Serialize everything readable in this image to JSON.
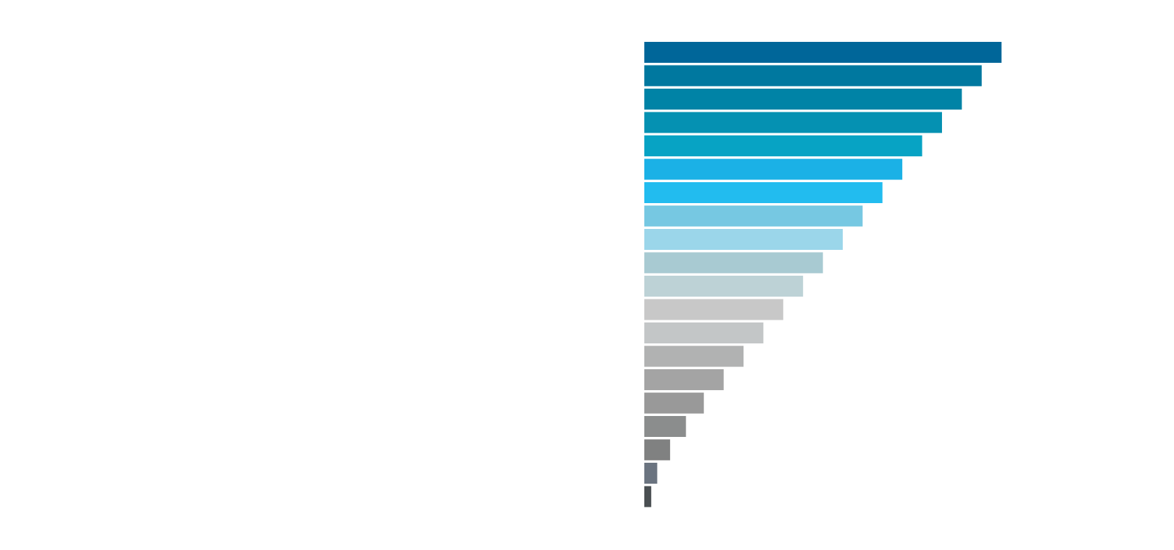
{
  "chart_data": {
    "type": "bar",
    "orientation": "horizontal",
    "title": "",
    "xlabel": "",
    "ylabel": "",
    "grid": false,
    "legend": "none",
    "xlim": [
      0,
      20
    ],
    "values": [
      18,
      17,
      16,
      15,
      14,
      13,
      12,
      11,
      10,
      9,
      8,
      7,
      6,
      5,
      4,
      3,
      2.1,
      1.3,
      0.65,
      0.35
    ],
    "colors": [
      "#006699",
      "#00789f",
      "#0083a6",
      "#0591b2",
      "#07a3c4",
      "#1bb1e6",
      "#22bcef",
      "#76c8e2",
      "#9bd6ea",
      "#a8cad2",
      "#bdd2d6",
      "#c8c8c8",
      "#c3c6c7",
      "#b1b2b2",
      "#a4a4a4",
      "#999999",
      "#8b8d8d",
      "#808181",
      "#6b7480",
      "#4a4f52"
    ]
  }
}
